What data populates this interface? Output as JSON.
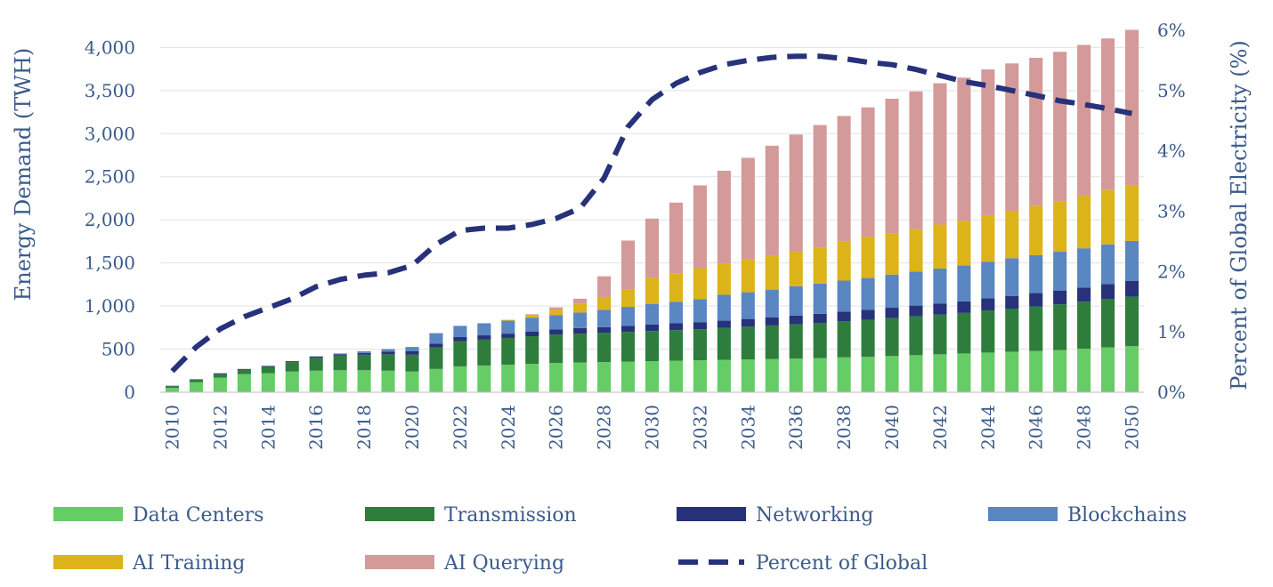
{
  "chart_data": {
    "type": "bar",
    "stacked": true,
    "title": "",
    "xlabel": "",
    "ylabel": "Energy Demand (TWH)",
    "y2label": "Percent of Global Electricity (%)",
    "ylim": [
      0,
      4200
    ],
    "y2lim": [
      0,
      6
    ],
    "y_ticks": [
      0,
      500,
      1000,
      1500,
      2000,
      2500,
      3000,
      3500,
      4000
    ],
    "y_tick_labels": [
      "0",
      "500",
      "1,000",
      "1,500",
      "2,000",
      "2,500",
      "3,000",
      "3,500",
      "4,000"
    ],
    "y2_ticks": [
      0,
      1,
      2,
      3,
      4,
      5,
      6
    ],
    "y2_tick_labels": [
      "0%",
      "1%",
      "2%",
      "3%",
      "4%",
      "5%",
      "6%"
    ],
    "x_tick_labels": [
      "2010",
      "2012",
      "2014",
      "2016",
      "2018",
      "2020",
      "2022",
      "2024",
      "2026",
      "2028",
      "2030",
      "2032",
      "2034",
      "2036",
      "2038",
      "2040",
      "2042",
      "2044",
      "2046",
      "2048",
      "2050"
    ],
    "categories": [
      2010,
      2011,
      2012,
      2013,
      2014,
      2015,
      2016,
      2017,
      2018,
      2019,
      2020,
      2021,
      2022,
      2023,
      2024,
      2025,
      2026,
      2027,
      2028,
      2029,
      2030,
      2031,
      2032,
      2033,
      2034,
      2035,
      2036,
      2037,
      2038,
      2039,
      2040,
      2041,
      2042,
      2043,
      2044,
      2045,
      2046,
      2047,
      2048,
      2049,
      2050
    ],
    "series": [
      {
        "name": "Data Centers",
        "color": "#66cc66",
        "values": [
          50,
          115,
          170,
          210,
          220,
          240,
          250,
          255,
          255,
          250,
          240,
          270,
          300,
          310,
          320,
          330,
          340,
          345,
          350,
          355,
          360,
          365,
          370,
          375,
          380,
          385,
          390,
          395,
          405,
          410,
          420,
          430,
          440,
          450,
          460,
          470,
          480,
          490,
          505,
          520,
          535
        ]
      },
      {
        "name": "Transmission",
        "color": "#2e7d3c",
        "values": [
          20,
          30,
          40,
          50,
          75,
          110,
          150,
          170,
          180,
          190,
          195,
          250,
          290,
          300,
          310,
          320,
          330,
          335,
          340,
          345,
          350,
          355,
          360,
          370,
          380,
          390,
          400,
          410,
          420,
          430,
          440,
          450,
          460,
          470,
          490,
          500,
          515,
          530,
          545,
          560,
          575
        ]
      },
      {
        "name": "Networking",
        "color": "#27327a",
        "values": [
          5,
          5,
          10,
          10,
          10,
          10,
          15,
          15,
          20,
          30,
          40,
          45,
          50,
          50,
          50,
          55,
          60,
          65,
          65,
          70,
          75,
          80,
          80,
          85,
          90,
          95,
          100,
          105,
          110,
          115,
          120,
          125,
          130,
          135,
          140,
          145,
          155,
          160,
          165,
          175,
          180
        ]
      },
      {
        "name": "Blockchains",
        "color": "#5a86c2",
        "values": [
          0,
          0,
          0,
          0,
          0,
          0,
          0,
          10,
          20,
          30,
          50,
          120,
          130,
          140,
          150,
          160,
          165,
          180,
          200,
          220,
          240,
          250,
          270,
          300,
          310,
          320,
          340,
          350,
          360,
          370,
          385,
          395,
          405,
          415,
          425,
          440,
          440,
          450,
          455,
          460,
          465
        ]
      },
      {
        "name": "AI Training",
        "color": "#ddb31a",
        "values": [
          0,
          0,
          0,
          0,
          0,
          0,
          0,
          0,
          0,
          0,
          0,
          0,
          0,
          0,
          10,
          30,
          60,
          100,
          150,
          200,
          300,
          330,
          360,
          360,
          380,
          390,
          400,
          420,
          450,
          480,
          480,
          490,
          510,
          520,
          540,
          550,
          570,
          580,
          610,
          630,
          650
        ]
      },
      {
        "name": "AI Querying",
        "color": "#d49a9a",
        "values": [
          0,
          0,
          0,
          0,
          0,
          0,
          0,
          0,
          0,
          0,
          0,
          0,
          0,
          0,
          0,
          10,
          30,
          60,
          240,
          570,
          690,
          820,
          960,
          1080,
          1180,
          1280,
          1360,
          1420,
          1460,
          1500,
          1560,
          1600,
          1640,
          1660,
          1690,
          1710,
          1720,
          1740,
          1750,
          1760,
          1800
        ]
      }
    ],
    "line_series": {
      "name": "Percent of Global",
      "axis": "secondary",
      "color": "#27327a",
      "values": [
        0.35,
        0.75,
        1.05,
        1.25,
        1.4,
        1.55,
        1.75,
        1.87,
        1.94,
        1.98,
        2.1,
        2.45,
        2.68,
        2.72,
        2.72,
        2.78,
        2.88,
        3.05,
        3.55,
        4.4,
        4.85,
        5.12,
        5.3,
        5.43,
        5.5,
        5.55,
        5.57,
        5.57,
        5.53,
        5.47,
        5.43,
        5.35,
        5.25,
        5.15,
        5.08,
        5,
        4.92,
        4.83,
        4.77,
        4.7,
        4.62
      ]
    },
    "legend": [
      {
        "label": "Data Centers",
        "kind": "bar",
        "color": "#66cc66"
      },
      {
        "label": "Transmission",
        "kind": "bar",
        "color": "#2e7d3c"
      },
      {
        "label": "Networking",
        "kind": "bar",
        "color": "#27327a"
      },
      {
        "label": "Blockchains",
        "kind": "bar",
        "color": "#5a86c2"
      },
      {
        "label": "AI Training",
        "kind": "bar",
        "color": "#ddb31a"
      },
      {
        "label": "AI Querying",
        "kind": "bar",
        "color": "#d49a9a"
      },
      {
        "label": "Percent of Global",
        "kind": "line",
        "color": "#27327a"
      }
    ],
    "legend_position": "bottom",
    "grid": true
  }
}
